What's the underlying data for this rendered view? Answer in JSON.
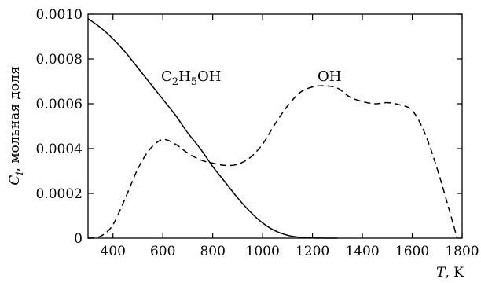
{
  "chart_data": {
    "type": "line",
    "xlabel": "T, K",
    "xlabel_var": "T",
    "xlabel_unit": ", K",
    "ylabel": "C_i, мольная доля",
    "ylabel_var": "C",
    "ylabel_sub": "i",
    "ylabel_unit": ", мольная доля",
    "xlim": [
      300,
      1800
    ],
    "ylim": [
      0,
      0.001
    ],
    "x_ticks": [
      400,
      600,
      800,
      1000,
      1200,
      1400,
      1600,
      1800
    ],
    "y_ticks": [
      0,
      0.0002,
      0.0004,
      0.0006,
      0.0008,
      0.001
    ],
    "y_tick_labels": [
      "0",
      "0.0002",
      "0.0004",
      "0.0006",
      "0.0008",
      "0.0010"
    ],
    "grid": false,
    "series": [
      {
        "name": "C2H5OH",
        "style": "solid",
        "x": [
          300,
          350,
          400,
          450,
          500,
          550,
          600,
          650,
          700,
          750,
          800,
          850,
          900,
          950,
          1000,
          1050,
          1100,
          1150,
          1200,
          1250,
          1300
        ],
        "y": [
          0.00098,
          0.00094,
          0.00089,
          0.00083,
          0.00076,
          0.00069,
          0.00062,
          0.00055,
          0.00047,
          0.0004,
          0.00032,
          0.00025,
          0.00018,
          0.000118,
          6.8e-05,
          3.3e-05,
          1.3e-05,
          4e-06,
          1e-06,
          2e-07,
          0
        ]
      },
      {
        "name": "OH",
        "style": "dashed",
        "x": [
          300,
          330,
          360,
          400,
          450,
          500,
          550,
          600,
          650,
          700,
          750,
          800,
          850,
          900,
          950,
          1000,
          1050,
          1100,
          1150,
          1200,
          1250,
          1300,
          1350,
          1400,
          1450,
          1500,
          1550,
          1600,
          1650,
          1700,
          1750,
          1780
        ],
        "y": [
          0,
          2e-06,
          1.5e-05,
          6e-05,
          0.00018,
          0.00031,
          0.0004,
          0.00044,
          0.00042,
          0.00038,
          0.00035,
          0.000335,
          0.000325,
          0.00033,
          0.00036,
          0.00042,
          0.00051,
          0.00059,
          0.00065,
          0.000675,
          0.00068,
          0.00067,
          0.00063,
          0.00061,
          0.0006,
          0.000605,
          0.000595,
          0.00057,
          0.00047,
          0.00031,
          0.00012,
          0
        ]
      }
    ],
    "annotations": [
      {
        "label_parts": [
          "C",
          "2",
          "H",
          "5",
          "OH"
        ],
        "series": "C2H5OH"
      },
      {
        "label": "OH",
        "series": "OH"
      }
    ]
  }
}
